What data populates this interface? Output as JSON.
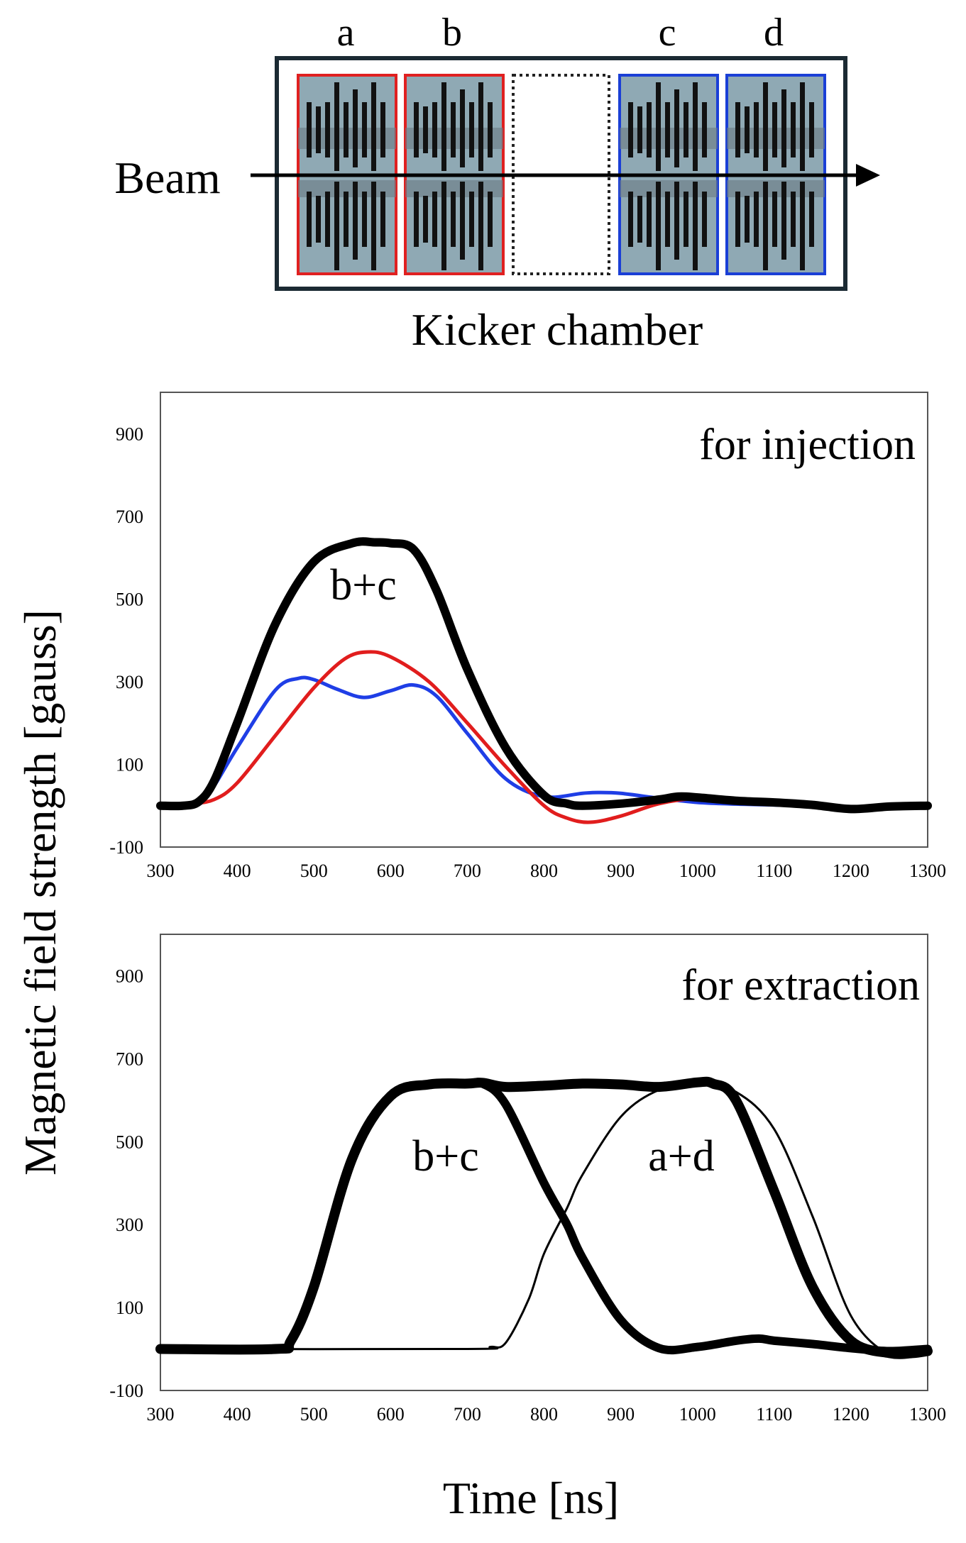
{
  "diagram": {
    "module_labels": [
      "a",
      "b",
      "c",
      "d"
    ],
    "beam_label": "Beam",
    "chamber_label": "Kicker chamber",
    "colors": {
      "module_fill": "#8fa9b4",
      "module_border_injection": "#e02020",
      "module_border_extraction": "#1a3fd6",
      "chamber_border": "#1b2a33"
    }
  },
  "axis_titles": {
    "y": "Magnetic field strength [gauss]",
    "x": "Time [ns]"
  },
  "chart_data": [
    {
      "type": "line",
      "title": "for injection",
      "xlabel": "Time [ns]",
      "ylabel": "Magnetic field strength [gauss]",
      "xlim": [
        300,
        1300
      ],
      "ylim": [
        -100,
        1000
      ],
      "x_ticks": [
        300,
        400,
        500,
        600,
        700,
        800,
        900,
        1000,
        1100,
        1200,
        1300
      ],
      "y_ticks": [
        -100,
        100,
        300,
        500,
        700,
        900
      ],
      "grid": false,
      "annotations": [
        "b+c"
      ],
      "series": [
        {
          "color": "#1f3ee6",
          "x": [
            300,
            340,
            360,
            400,
            450,
            480,
            500,
            530,
            565,
            600,
            630,
            660,
            700,
            750,
            800,
            850,
            870,
            900,
            950,
            1000,
            1050,
            1100,
            1150,
            1200,
            1250,
            1300
          ],
          "y": [
            0,
            2,
            20,
            140,
            280,
            308,
            305,
            282,
            262,
            278,
            292,
            265,
            175,
            65,
            22,
            30,
            32,
            30,
            18,
            8,
            4,
            2,
            0,
            -5,
            0,
            0
          ]
        },
        {
          "color": "#e11d1d",
          "x": [
            300,
            340,
            370,
            400,
            450,
            500,
            540,
            570,
            600,
            650,
            700,
            750,
            800,
            830,
            860,
            900,
            950,
            1000,
            1050,
            1100,
            1150,
            1200,
            1250,
            1300
          ],
          "y": [
            0,
            5,
            15,
            55,
            170,
            285,
            355,
            372,
            360,
            300,
            200,
            95,
            0,
            -30,
            -40,
            -25,
            5,
            18,
            12,
            8,
            2,
            -5,
            -2,
            0
          ]
        },
        {
          "color": "#000000",
          "x": [
            300,
            330,
            350,
            370,
            400,
            450,
            500,
            550,
            580,
            600,
            630,
            660,
            700,
            750,
            800,
            830,
            850,
            900,
            950,
            975,
            1000,
            1050,
            1100,
            1150,
            1200,
            1250,
            1300
          ],
          "y": [
            0,
            0,
            10,
            60,
            200,
            440,
            590,
            635,
            637,
            635,
            620,
            520,
            330,
            140,
            25,
            5,
            0,
            5,
            15,
            22,
            20,
            12,
            8,
            2,
            -8,
            -2,
            0
          ]
        }
      ]
    },
    {
      "type": "line",
      "title": "for extraction",
      "xlabel": "Time [ns]",
      "ylabel": "Magnetic field strength [gauss]",
      "xlim": [
        300,
        1300
      ],
      "ylim": [
        -100,
        1000
      ],
      "x_ticks": [
        300,
        400,
        500,
        600,
        700,
        800,
        900,
        1000,
        1100,
        1200,
        1300
      ],
      "y_ticks": [
        -100,
        100,
        300,
        500,
        700,
        900
      ],
      "grid": false,
      "annotations": [
        "b+c",
        "a+d"
      ],
      "series": [
        {
          "color": "#000000",
          "x": [
            300,
            450,
            470,
            500,
            550,
            600,
            650,
            700,
            720,
            750,
            800,
            830,
            850,
            900,
            950,
            1000,
            1050,
            1080,
            1100,
            1150,
            1200,
            1250,
            1300
          ],
          "y": [
            0,
            0,
            20,
            150,
            460,
            610,
            638,
            640,
            640,
            590,
            400,
            300,
            220,
            70,
            2,
            5,
            20,
            25,
            20,
            12,
            2,
            -5,
            0
          ]
        },
        {
          "color": "#000000",
          "x": [
            300,
            700,
            730,
            750,
            780,
            800,
            830,
            850,
            900,
            950,
            1000,
            1050,
            1100,
            1150,
            1200,
            1250,
            1280,
            1300
          ],
          "y": [
            0,
            0,
            5,
            15,
            120,
            230,
            340,
            420,
            560,
            625,
            640,
            620,
            530,
            320,
            80,
            -15,
            -10,
            -5
          ]
        },
        {
          "color": "#000000",
          "x": [
            300,
            450,
            470,
            500,
            550,
            600,
            650,
            700,
            720,
            750,
            800,
            850,
            900,
            950,
            1000,
            1020,
            1050,
            1100,
            1150,
            1200,
            1250,
            1280,
            1300
          ],
          "y": [
            0,
            0,
            20,
            150,
            460,
            610,
            638,
            640,
            642,
            632,
            635,
            640,
            638,
            632,
            643,
            640,
            600,
            380,
            150,
            20,
            -10,
            -10,
            -5
          ]
        }
      ]
    }
  ]
}
